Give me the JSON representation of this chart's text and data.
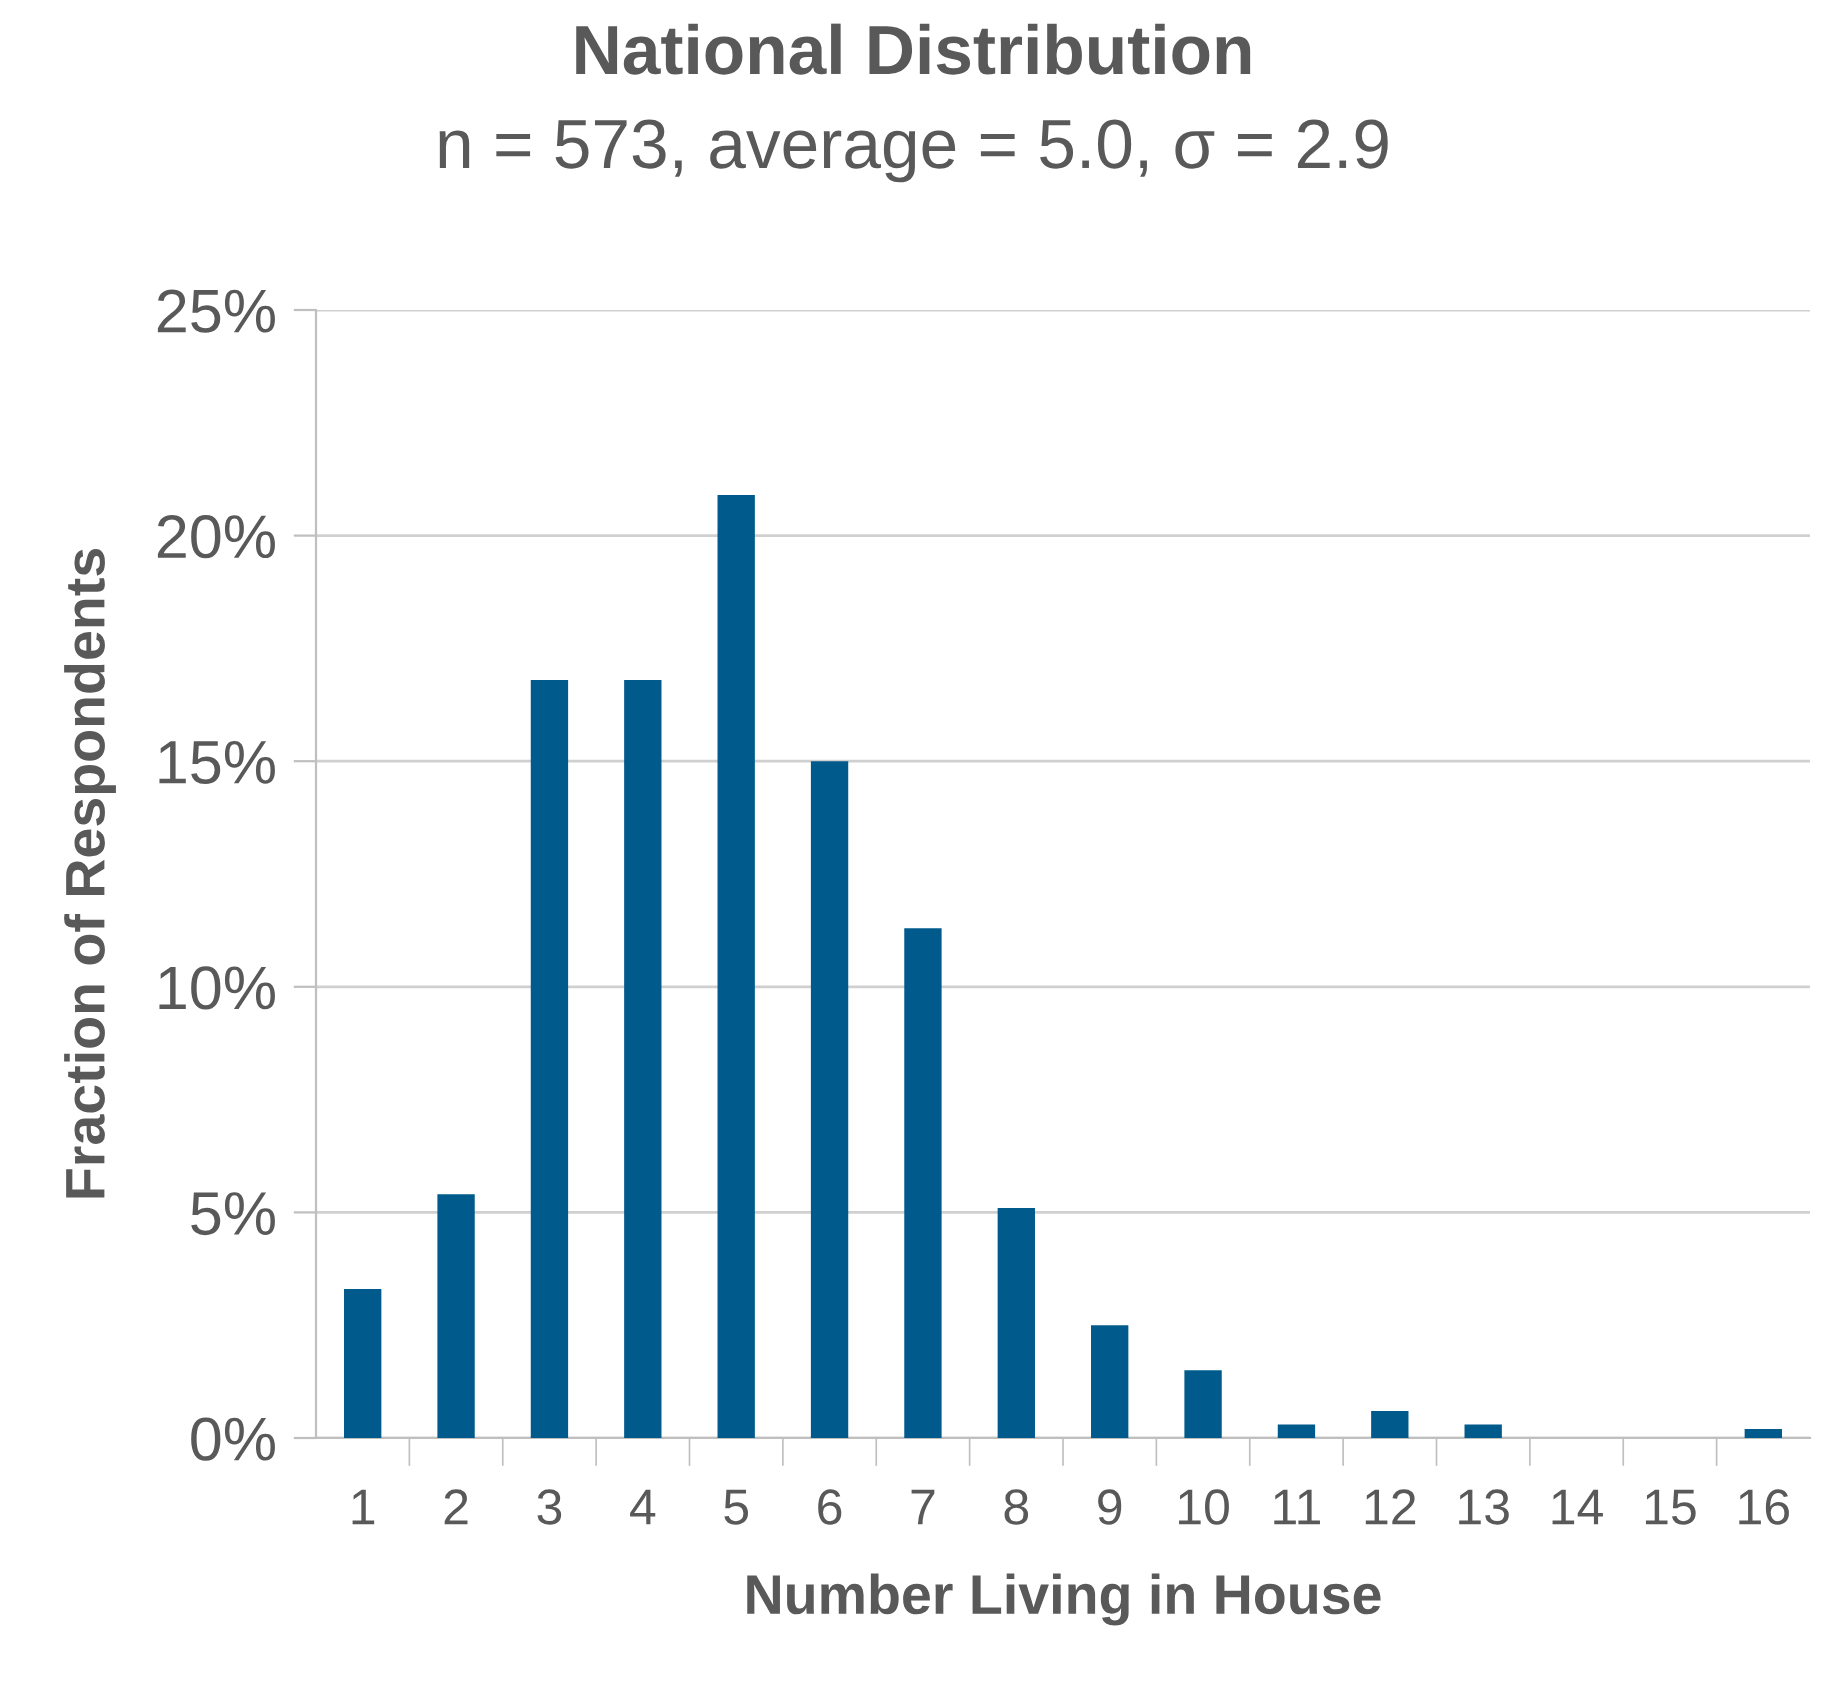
{
  "chart_data": {
    "type": "bar",
    "title": "National Distribution",
    "subtitle": "n = 573, average = 5.0, σ = 2.9",
    "xlabel": "Number Living in House",
    "ylabel": "Fraction of Respondents",
    "categories": [
      "1",
      "2",
      "3",
      "4",
      "5",
      "6",
      "7",
      "8",
      "9",
      "10",
      "11",
      "12",
      "13",
      "14",
      "15",
      "16"
    ],
    "values": [
      3.3,
      5.4,
      16.8,
      16.8,
      20.9,
      15.0,
      11.3,
      5.1,
      2.5,
      1.5,
      0.3,
      0.6,
      0.3,
      0,
      0,
      0.2
    ],
    "color": "#005b8c",
    "ylim": [
      0,
      25
    ],
    "yticks": [
      {
        "value": 0,
        "label": "0%"
      },
      {
        "value": 5,
        "label": "5%"
      },
      {
        "value": 10,
        "label": "10%"
      },
      {
        "value": 15,
        "label": "15%"
      },
      {
        "value": 20,
        "label": "20%"
      },
      {
        "value": 25,
        "label": "25%"
      }
    ],
    "grid": "y",
    "legend": false
  }
}
